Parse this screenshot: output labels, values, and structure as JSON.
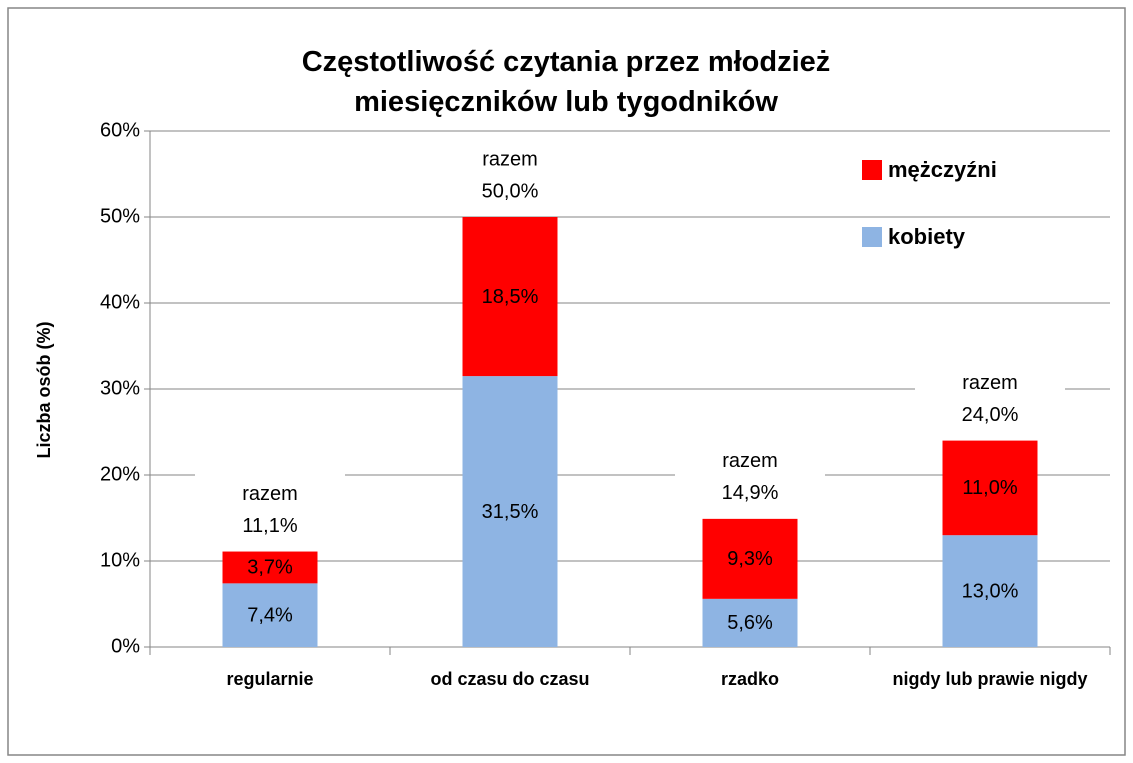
{
  "chart_data": {
    "type": "stacked_bar",
    "title": "Częstotliwość czytania przez młodzież miesięczników lub tygodników",
    "ylabel": "Liczba osób (%)",
    "categories": [
      "regularnie",
      "od czasu do czasu",
      "rzadko",
      "nigdy lub prawie nigdy"
    ],
    "series": [
      {
        "name": "kobiety",
        "color": "#8eb4e3",
        "values": [
          7.4,
          31.5,
          5.6,
          13.0
        ],
        "value_labels": [
          "7,4%",
          "31,5%",
          "5,6%",
          "13,0%"
        ]
      },
      {
        "name": "mężczyźni",
        "color": "#ff0000",
        "values": [
          3.7,
          18.5,
          9.3,
          11.0
        ],
        "value_labels": [
          "3,7%",
          "18,5%",
          "9,3%",
          "11,0%"
        ]
      }
    ],
    "totals": {
      "label": "razem",
      "values": [
        11.1,
        50.0,
        14.9,
        24.0
      ],
      "value_labels": [
        "11,1%",
        "50,0%",
        "14,9%",
        "24,0%"
      ]
    },
    "ylim": [
      0,
      60
    ],
    "yticks": [
      {
        "value": 0,
        "label": "0%"
      },
      {
        "value": 10,
        "label": "10%"
      },
      {
        "value": 20,
        "label": "20%"
      },
      {
        "value": 30,
        "label": "30%"
      },
      {
        "value": 40,
        "label": "40%"
      },
      {
        "value": 50,
        "label": "50%"
      },
      {
        "value": 60,
        "label": "60%"
      }
    ],
    "grid": true,
    "legend": "upper right"
  }
}
